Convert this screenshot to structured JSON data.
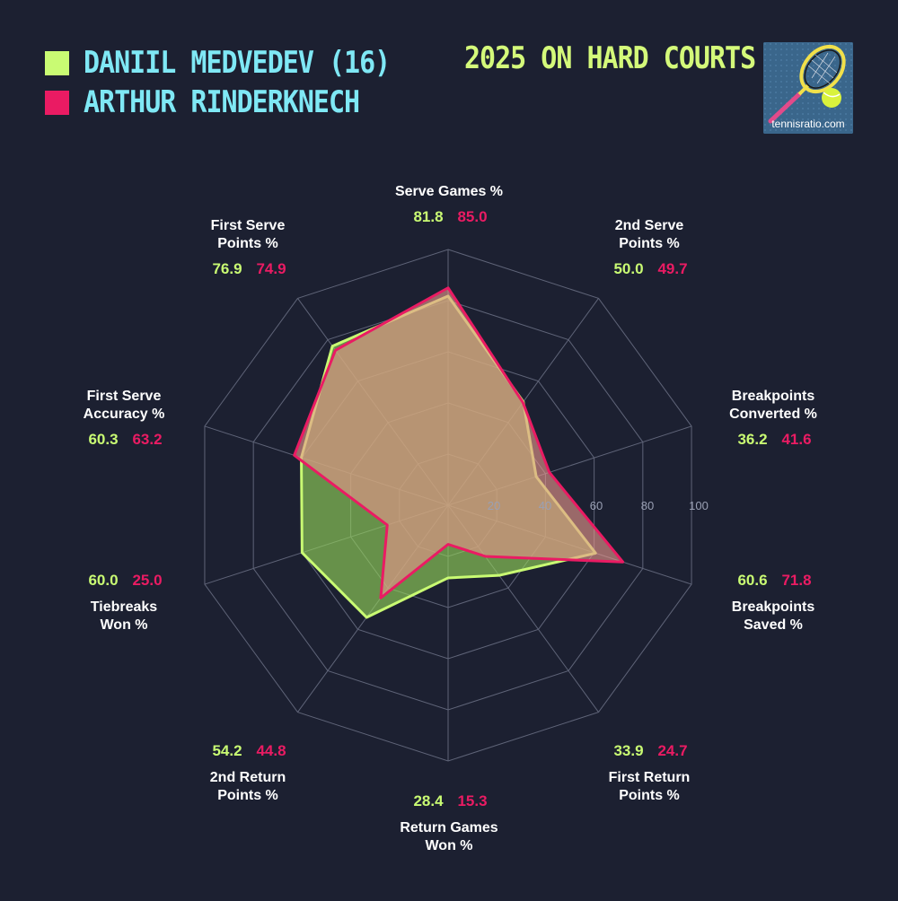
{
  "legend": {
    "players": [
      {
        "name": "DANIIL MEDVEDEV (16)",
        "color": "#c9fb73"
      },
      {
        "name": "ARTHUR RINDERKNECH",
        "color": "#ea1b63"
      }
    ]
  },
  "title": "2025 ON HARD COURTS",
  "logo": {
    "text": "tennisratio.com",
    "icon": "tennis-racket-ball-icon"
  },
  "chart_data": {
    "type": "radar",
    "title": "2025 ON HARD COURTS",
    "axes": [
      {
        "label": [
          "Serve Games %"
        ]
      },
      {
        "label": [
          "2nd Serve",
          "Points %"
        ]
      },
      {
        "label": [
          "Breakpoints",
          "Converted %"
        ]
      },
      {
        "label": [
          "Breakpoints",
          "Saved %"
        ]
      },
      {
        "label": [
          "First Return",
          "Points %"
        ]
      },
      {
        "label": [
          "Return Games",
          "Won %"
        ]
      },
      {
        "label": [
          "2nd Return",
          "Points %"
        ]
      },
      {
        "label": [
          "Tiebreaks",
          "Won %"
        ]
      },
      {
        "label": [
          "First Serve",
          "Accuracy %"
        ]
      },
      {
        "label": [
          "First Serve",
          "Points %"
        ]
      }
    ],
    "series": [
      {
        "name": "DANIIL MEDVEDEV (16)",
        "color": "#c9fb73",
        "values": [
          81.8,
          50.0,
          36.2,
          60.6,
          33.9,
          28.4,
          54.2,
          60.0,
          60.3,
          76.9
        ],
        "labels": [
          "81.8",
          "50.0",
          "36.2",
          "60.6",
          "33.9",
          "28.4",
          "54.2",
          "60.0",
          "60.3",
          "76.9"
        ]
      },
      {
        "name": "ARTHUR RINDERKNECH",
        "color": "#ea1b63",
        "values": [
          85.0,
          49.7,
          41.6,
          71.8,
          24.7,
          15.3,
          44.8,
          25.0,
          63.2,
          74.9
        ],
        "labels": [
          "85.0",
          "49.7",
          "41.6",
          "71.8",
          "24.7",
          "15.3",
          "44.8",
          "25.0",
          "63.2",
          "74.9"
        ]
      }
    ],
    "rlim": [
      0,
      100
    ],
    "ring_ticks": [
      "20",
      "40",
      "60",
      "80",
      "100"
    ],
    "grid": true
  }
}
